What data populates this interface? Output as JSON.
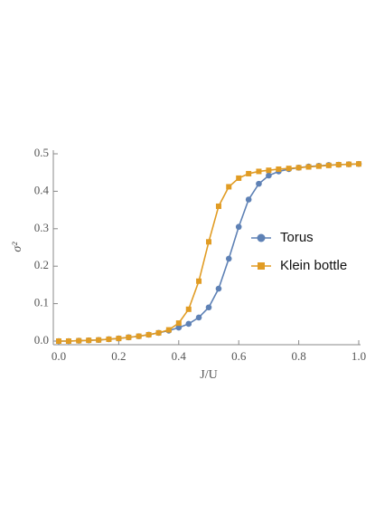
{
  "chart_data": {
    "type": "line",
    "x_label": "J/U",
    "y_label": "σ²",
    "x": [
      0,
      0.033,
      0.067,
      0.1,
      0.133,
      0.167,
      0.2,
      0.233,
      0.267,
      0.3,
      0.333,
      0.367,
      0.4,
      0.433,
      0.467,
      0.5,
      0.533,
      0.567,
      0.6,
      0.633,
      0.667,
      0.7,
      0.733,
      0.767,
      0.8,
      0.833,
      0.867,
      0.9,
      0.933,
      0.967,
      1.0
    ],
    "series": [
      {
        "name": "Torus",
        "color": "#5e81b5",
        "marker": "circle",
        "values": [
          0.0,
          0.0,
          0.001,
          0.002,
          0.003,
          0.005,
          0.007,
          0.01,
          0.013,
          0.017,
          0.022,
          0.028,
          0.036,
          0.046,
          0.063,
          0.09,
          0.14,
          0.22,
          0.305,
          0.378,
          0.42,
          0.442,
          0.453,
          0.459,
          0.463,
          0.466,
          0.468,
          0.47,
          0.471,
          0.472,
          0.473
        ]
      },
      {
        "name": "Klein bottle",
        "color": "#e19c24",
        "marker": "square",
        "values": [
          0.0,
          0.0,
          0.001,
          0.002,
          0.003,
          0.005,
          0.007,
          0.01,
          0.013,
          0.017,
          0.022,
          0.03,
          0.048,
          0.085,
          0.16,
          0.265,
          0.36,
          0.412,
          0.435,
          0.447,
          0.453,
          0.456,
          0.459,
          0.461,
          0.463,
          0.465,
          0.467,
          0.469,
          0.471,
          0.472,
          0.473
        ]
      }
    ],
    "xlim": [
      0,
      1.0
    ],
    "xticks": [
      {
        "value": 0,
        "label": "0.0"
      },
      {
        "value": 0.2,
        "label": "0.2"
      },
      {
        "value": 0.4,
        "label": "0.4"
      },
      {
        "value": 0.6,
        "label": "0.6"
      },
      {
        "value": 0.8,
        "label": "0.8"
      },
      {
        "value": 1.0,
        "label": "1.0"
      }
    ],
    "ylim": [
      0,
      0.5
    ],
    "yticks": [
      {
        "value": 0,
        "label": "0.0"
      },
      {
        "value": 0.1,
        "label": "0.1"
      },
      {
        "value": 0.2,
        "label": "0.2"
      },
      {
        "value": 0.3,
        "label": "0.3"
      },
      {
        "value": 0.4,
        "label": "0.4"
      },
      {
        "value": 0.5,
        "label": "0.5"
      }
    ],
    "legend": "right"
  }
}
